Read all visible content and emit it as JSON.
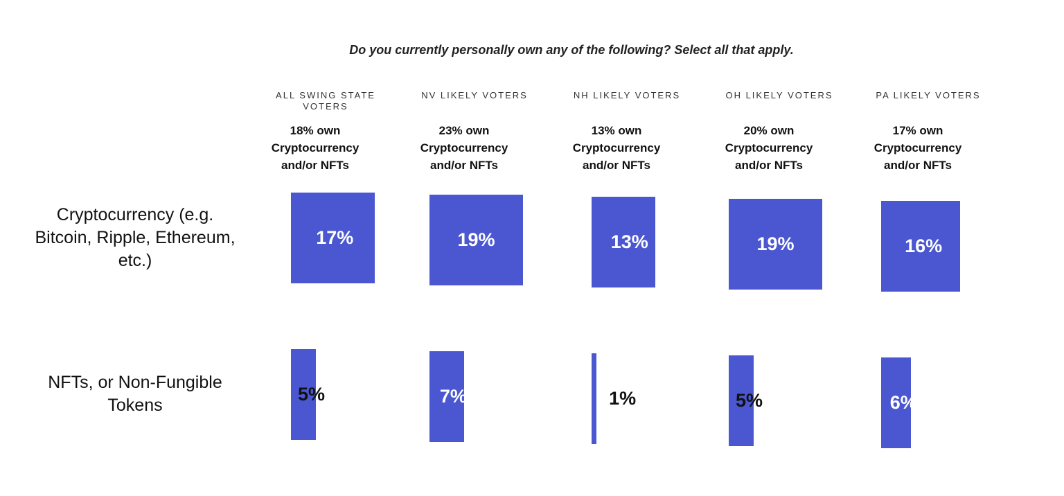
{
  "chart_data": {
    "type": "bar",
    "title": "Do you currently personally own any of the following? Select all that apply.",
    "categories": [
      "ALL SWING STATE VOTERS",
      "NV LIKELY VOTERS",
      "NH LIKELY VOTERS",
      "OH LIKELY VOTERS",
      "PA LIKELY VOTERS"
    ],
    "annotations": [
      "18% own Cryptocurrency and/or NFTs",
      "23% own Cryptocurrency and/or NFTs",
      "13% own Cryptocurrency and/or NFTs",
      "20% own Cryptocurrency and/or NFTs",
      "17% own Cryptocurrency and/or NFTs"
    ],
    "series": [
      {
        "name": "Cryptocurrency (e.g. Bitcoin, Ripple, Ethereum, etc.)",
        "color": "#4a57d1",
        "values": [
          17,
          19,
          13,
          19,
          16
        ],
        "value_labels": [
          "17%",
          "19%",
          "13%",
          "19%",
          "16%"
        ]
      },
      {
        "name": "NFTs, or Non-Fungible Tokens",
        "color": "#4a57d1",
        "values": [
          5,
          7,
          1,
          5,
          6
        ],
        "value_labels": [
          "5%",
          "7%",
          "1%",
          "5%",
          "6%"
        ]
      }
    ]
  }
}
